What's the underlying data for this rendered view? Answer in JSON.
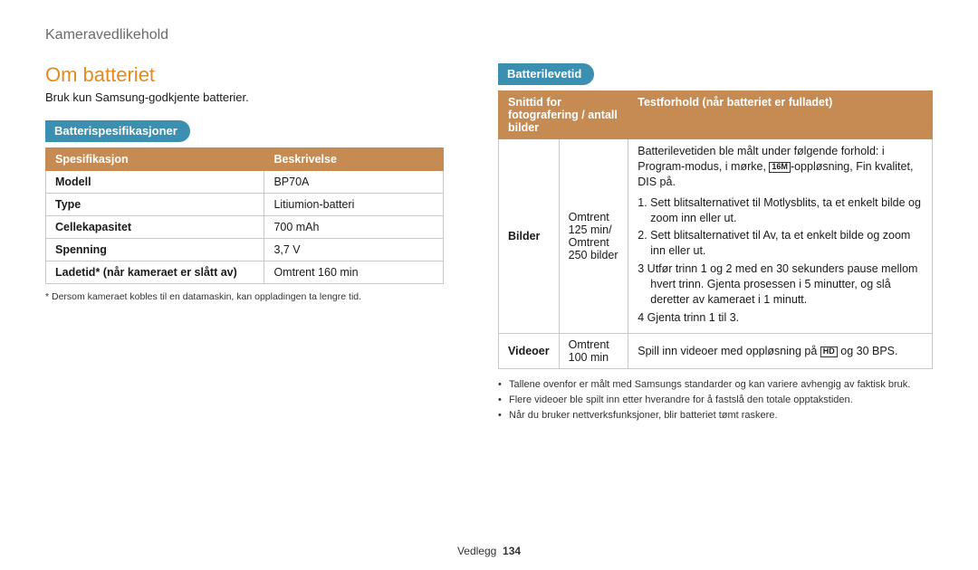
{
  "breadcrumb": "Kameravedlikehold",
  "left": {
    "heading": "Om batteriet",
    "intro": "Bruk kun Samsung-godkjente batterier.",
    "subheading": "Batterispesifikasjoner",
    "table": {
      "head_spec": "Spesifikasjon",
      "head_desc": "Beskrivelse",
      "rows": [
        {
          "spec": "Modell",
          "desc": "BP70A"
        },
        {
          "spec": "Type",
          "desc": "Litiumion-batteri"
        },
        {
          "spec": "Cellekapasitet",
          "desc": "700 mAh"
        },
        {
          "spec": "Spenning",
          "desc": "3,7 V"
        },
        {
          "spec": "Ladetid* (når kameraet er slått av)",
          "desc": "Omtrent 160 min"
        }
      ]
    },
    "footnote": "* Dersom kameraet kobles til en datamaskin, kan oppladingen ta lengre tid."
  },
  "right": {
    "subheading": "Batterilevetid",
    "table": {
      "head_left": "Snittid for fotografering / antall bilder",
      "head_right": "Testforhold (når batteriet er fulladet)",
      "photos": {
        "label": "Bilder",
        "value": "Omtrent 125 min/ Omtrent 250 bilder",
        "intro_pre": "Batterilevetiden ble målt under følgende forhold: i Program-modus, i mørke, ",
        "intro_icon": "16M",
        "intro_post": "-oppløsning, Fin kvalitet, DIS på.",
        "steps": [
          "1. Sett blitsalternativet til Motlysblits, ta et enkelt bilde og zoom inn eller ut.",
          "2. Sett blitsalternativet til Av, ta et enkelt bilde og zoom inn eller ut.",
          "3 Utfør trinn 1 og 2 med en 30 sekunders pause mellom hvert trinn. Gjenta prosessen i 5 minutter, og slå deretter av kameraet i 1 minutt.",
          "4 Gjenta trinn 1 til 3."
        ]
      },
      "videos": {
        "label": "Videoer",
        "value": "Omtrent 100 min",
        "desc_pre": "Spill inn videoer med oppløsning på ",
        "desc_icon": "HD",
        "desc_post": " og 30 BPS."
      }
    },
    "bullets": [
      "Tallene ovenfor er målt med Samsungs standarder og kan variere avhengig av faktisk bruk.",
      "Flere videoer ble spilt inn etter hverandre for å fastslå den totale opptakstiden.",
      "Når du bruker nettverksfunksjoner, blir batteriet tømt raskere."
    ]
  },
  "footer": {
    "section": "Vedlegg",
    "page": "134"
  },
  "colors": {
    "accent_orange": "#e58a1e",
    "pill_blue": "#3b8fb1",
    "table_header": "#c58b52",
    "border": "#c8c8c8",
    "breadcrumb": "#6b6b6b"
  }
}
